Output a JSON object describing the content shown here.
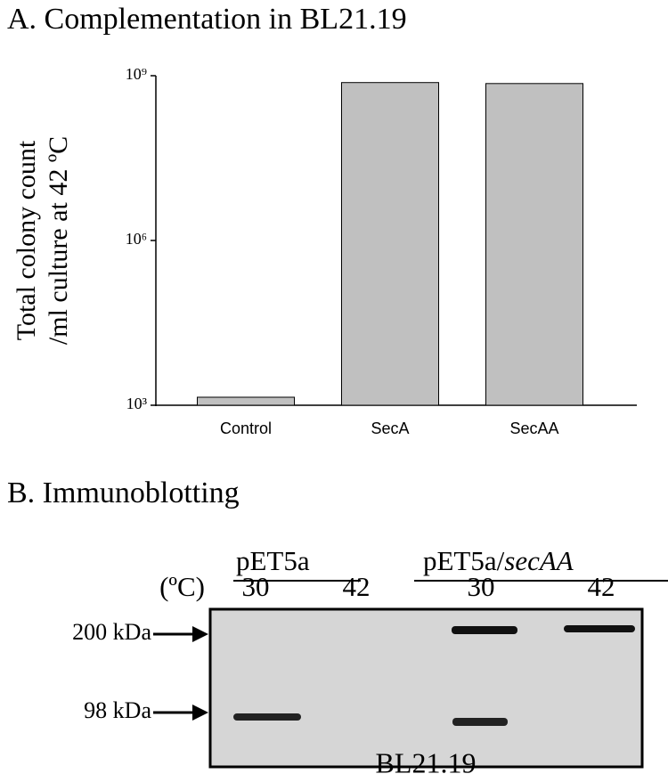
{
  "chart_data": {
    "type": "bar",
    "title": "A. Complementation in BL21.19",
    "y_label": [
      "Total colony count",
      "/ml culture at 42 ºC"
    ],
    "categories": [
      "Control",
      "SecA",
      "SecAA"
    ],
    "values": [
      1400,
      750000000,
      720000000
    ],
    "color": "#c0c0c0",
    "log_scale": true,
    "ylim": [
      1000,
      1000000000
    ],
    "yticks": [
      {
        "value": 1000,
        "label": "10³"
      },
      {
        "value": 1000000,
        "label": "10⁶"
      },
      {
        "value": 1000000000,
        "label": "10⁹"
      }
    ]
  },
  "blot": {
    "title": "B. Immunoblotting",
    "groups": [
      {
        "text": "pET5a"
      },
      {
        "text": "pET5a/",
        "italic": "secAA"
      }
    ],
    "temp_label": "(ºC)",
    "lanes": [
      "30",
      "42",
      "30",
      "42"
    ],
    "markers": [
      "200 kDa",
      "98 kDa"
    ],
    "strain": "BL21.19"
  }
}
